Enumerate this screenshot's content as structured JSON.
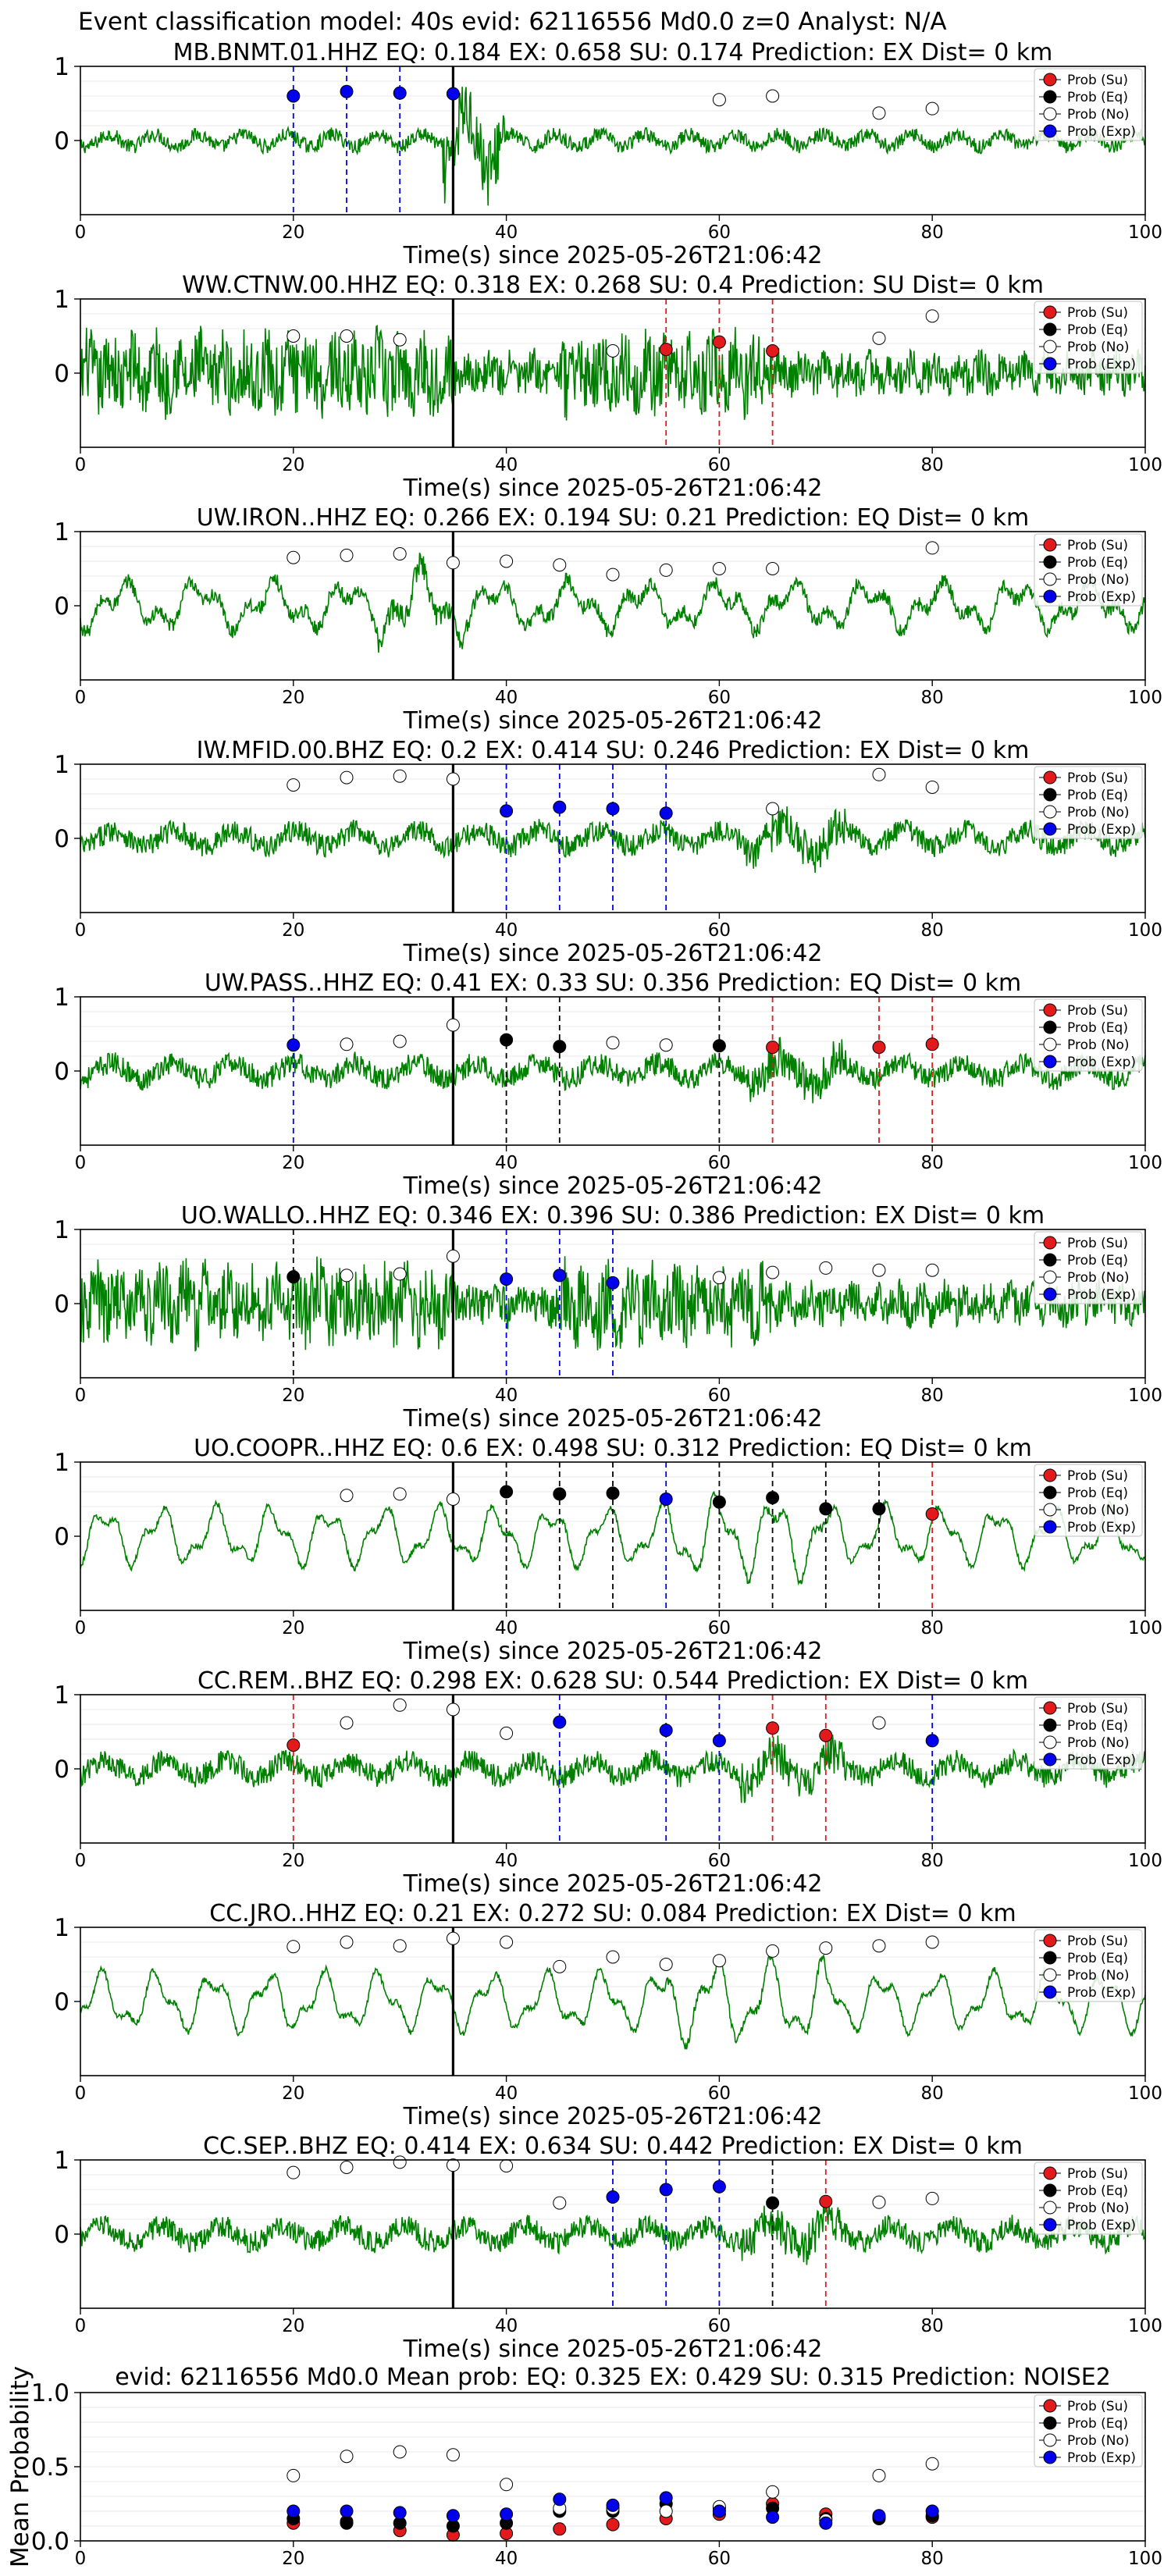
{
  "figure": {
    "suptitle": "Event classification model: 40s evid: 62116556 Md0.0 z=0 Analyst: N/A",
    "colors": {
      "trace": "#008000",
      "su": "#e31a1c",
      "eq": "#000000",
      "no": "#ffffff",
      "exp": "#0000ee",
      "pick": "#000000"
    },
    "legend": [
      "Prob (Su)",
      "Prob (Eq)",
      "Prob (No)",
      "Prob (Exp)"
    ],
    "xticks": [
      "0",
      "20",
      "40",
      "60",
      "80",
      "100"
    ],
    "yticks_wave": [
      "1",
      "0"
    ],
    "xlabel": "Time(s) since 2025-05-26T21:06:42"
  },
  "chart_data": [
    {
      "type": "line",
      "title": "MB.BNMT.01.HHZ   EQ: 0.184  EX: 0.658  SU: 0.174   Prediction: EX    Dist= 0 km",
      "xlim": [
        0,
        100
      ],
      "ylim": [
        -1,
        1
      ],
      "pick_time": 35,
      "waveform": "noisy_burst",
      "points": [
        {
          "x": 20,
          "y": 0.6,
          "cls": "exp",
          "line": true
        },
        {
          "x": 25,
          "y": 0.66,
          "cls": "exp",
          "line": true
        },
        {
          "x": 30,
          "y": 0.64,
          "cls": "exp",
          "line": true
        },
        {
          "x": 35,
          "y": 0.63,
          "cls": "exp",
          "line": true
        },
        {
          "x": 60,
          "y": 0.55,
          "cls": "no"
        },
        {
          "x": 65,
          "y": 0.6,
          "cls": "no"
        },
        {
          "x": 75,
          "y": 0.37,
          "cls": "no"
        },
        {
          "x": 80,
          "y": 0.43,
          "cls": "no"
        }
      ]
    },
    {
      "type": "line",
      "title": "WW.CTNW.00.HHZ   EQ: 0.318  EX: 0.268  SU: 0.4   Prediction: SU    Dist= 0 km",
      "xlim": [
        0,
        100
      ],
      "ylim": [
        -1,
        1
      ],
      "pick_time": 35,
      "waveform": "noisy_dense",
      "points": [
        {
          "x": 20,
          "y": 0.5,
          "cls": "no"
        },
        {
          "x": 25,
          "y": 0.5,
          "cls": "no"
        },
        {
          "x": 30,
          "y": 0.45,
          "cls": "no"
        },
        {
          "x": 50,
          "y": 0.3,
          "cls": "no"
        },
        {
          "x": 55,
          "y": 0.32,
          "cls": "su",
          "line": true
        },
        {
          "x": 60,
          "y": 0.42,
          "cls": "su",
          "line": true
        },
        {
          "x": 65,
          "y": 0.3,
          "cls": "su",
          "line": true
        },
        {
          "x": 75,
          "y": 0.47,
          "cls": "no"
        },
        {
          "x": 80,
          "y": 0.77,
          "cls": "no"
        }
      ]
    },
    {
      "type": "line",
      "title": "UW.IRON..HHZ   EQ: 0.266  EX: 0.194  SU: 0.21   Prediction: EQ    Dist= 0 km",
      "xlim": [
        0,
        100
      ],
      "ylim": [
        -1,
        1
      ],
      "pick_time": 35,
      "waveform": "slow",
      "points": [
        {
          "x": 20,
          "y": 0.65,
          "cls": "no"
        },
        {
          "x": 25,
          "y": 0.68,
          "cls": "no"
        },
        {
          "x": 30,
          "y": 0.7,
          "cls": "no"
        },
        {
          "x": 35,
          "y": 0.58,
          "cls": "no"
        },
        {
          "x": 40,
          "y": 0.6,
          "cls": "no"
        },
        {
          "x": 45,
          "y": 0.55,
          "cls": "no"
        },
        {
          "x": 50,
          "y": 0.42,
          "cls": "no"
        },
        {
          "x": 55,
          "y": 0.48,
          "cls": "no"
        },
        {
          "x": 60,
          "y": 0.5,
          "cls": "no"
        },
        {
          "x": 65,
          "y": 0.5,
          "cls": "no"
        },
        {
          "x": 80,
          "y": 0.78,
          "cls": "no"
        }
      ]
    },
    {
      "type": "line",
      "title": "IW.MFID.00.BHZ   EQ: 0.2  EX: 0.414  SU: 0.246   Prediction: EX    Dist= 0 km",
      "xlim": [
        0,
        100
      ],
      "ylim": [
        -1,
        1
      ],
      "pick_time": 35,
      "waveform": "noisy",
      "points": [
        {
          "x": 20,
          "y": 0.72,
          "cls": "no"
        },
        {
          "x": 25,
          "y": 0.82,
          "cls": "no"
        },
        {
          "x": 30,
          "y": 0.84,
          "cls": "no"
        },
        {
          "x": 35,
          "y": 0.8,
          "cls": "no"
        },
        {
          "x": 40,
          "y": 0.37,
          "cls": "exp",
          "line": true
        },
        {
          "x": 45,
          "y": 0.42,
          "cls": "exp",
          "line": true
        },
        {
          "x": 50,
          "y": 0.4,
          "cls": "exp",
          "line": true
        },
        {
          "x": 55,
          "y": 0.34,
          "cls": "exp",
          "line": true
        },
        {
          "x": 65,
          "y": 0.4,
          "cls": "no"
        },
        {
          "x": 75,
          "y": 0.86,
          "cls": "no"
        },
        {
          "x": 80,
          "y": 0.69,
          "cls": "no"
        }
      ]
    },
    {
      "type": "line",
      "title": "UW.PASS..HHZ   EQ: 0.41  EX: 0.33  SU: 0.356   Prediction: EQ    Dist= 0 km",
      "xlim": [
        0,
        100
      ],
      "ylim": [
        -1,
        1
      ],
      "pick_time": 35,
      "waveform": "noisy",
      "points": [
        {
          "x": 20,
          "y": 0.35,
          "cls": "exp",
          "line": true
        },
        {
          "x": 25,
          "y": 0.36,
          "cls": "no"
        },
        {
          "x": 30,
          "y": 0.4,
          "cls": "no"
        },
        {
          "x": 35,
          "y": 0.62,
          "cls": "no"
        },
        {
          "x": 40,
          "y": 0.42,
          "cls": "eq",
          "line": true
        },
        {
          "x": 45,
          "y": 0.33,
          "cls": "eq",
          "line": true
        },
        {
          "x": 50,
          "y": 0.38,
          "cls": "no"
        },
        {
          "x": 55,
          "y": 0.35,
          "cls": "no"
        },
        {
          "x": 60,
          "y": 0.34,
          "cls": "eq",
          "line": true
        },
        {
          "x": 65,
          "y": 0.32,
          "cls": "su",
          "line": true
        },
        {
          "x": 75,
          "y": 0.32,
          "cls": "su",
          "line": true
        },
        {
          "x": 80,
          "y": 0.36,
          "cls": "su",
          "line": true
        }
      ]
    },
    {
      "type": "line",
      "title": "UO.WALLO..HHZ   EQ: 0.346  EX: 0.396  SU: 0.386   Prediction: EX    Dist= 0 km",
      "xlim": [
        0,
        100
      ],
      "ylim": [
        -1,
        1
      ],
      "pick_time": 35,
      "waveform": "noisy_dense",
      "points": [
        {
          "x": 20,
          "y": 0.36,
          "cls": "eq",
          "line": true
        },
        {
          "x": 25,
          "y": 0.38,
          "cls": "no"
        },
        {
          "x": 30,
          "y": 0.4,
          "cls": "no"
        },
        {
          "x": 35,
          "y": 0.64,
          "cls": "no"
        },
        {
          "x": 40,
          "y": 0.33,
          "cls": "exp",
          "line": true
        },
        {
          "x": 45,
          "y": 0.38,
          "cls": "exp",
          "line": true
        },
        {
          "x": 50,
          "y": 0.28,
          "cls": "exp",
          "line": true
        },
        {
          "x": 60,
          "y": 0.35,
          "cls": "no"
        },
        {
          "x": 65,
          "y": 0.42,
          "cls": "no"
        },
        {
          "x": 70,
          "y": 0.48,
          "cls": "no"
        },
        {
          "x": 75,
          "y": 0.45,
          "cls": "no"
        },
        {
          "x": 80,
          "y": 0.45,
          "cls": "no"
        }
      ]
    },
    {
      "type": "line",
      "title": "UO.COOPR..HHZ   EQ: 0.6  EX: 0.498  SU: 0.312   Prediction: EQ    Dist= 0 km",
      "xlim": [
        0,
        100
      ],
      "ylim": [
        -1,
        1
      ],
      "pick_time": 35,
      "waveform": "wavy",
      "points": [
        {
          "x": 25,
          "y": 0.55,
          "cls": "no"
        },
        {
          "x": 30,
          "y": 0.57,
          "cls": "no"
        },
        {
          "x": 35,
          "y": 0.5,
          "cls": "no"
        },
        {
          "x": 40,
          "y": 0.6,
          "cls": "eq",
          "line": true
        },
        {
          "x": 45,
          "y": 0.57,
          "cls": "eq",
          "line": true
        },
        {
          "x": 50,
          "y": 0.58,
          "cls": "eq",
          "line": true
        },
        {
          "x": 55,
          "y": 0.5,
          "cls": "exp",
          "line": true
        },
        {
          "x": 60,
          "y": 0.46,
          "cls": "eq",
          "line": true
        },
        {
          "x": 65,
          "y": 0.52,
          "cls": "eq",
          "line": true
        },
        {
          "x": 70,
          "y": 0.37,
          "cls": "eq",
          "line": true
        },
        {
          "x": 75,
          "y": 0.37,
          "cls": "eq",
          "line": true
        },
        {
          "x": 80,
          "y": 0.3,
          "cls": "su",
          "line": true
        }
      ]
    },
    {
      "type": "line",
      "title": "CC.REM..BHZ   EQ: 0.298  EX: 0.628  SU: 0.544   Prediction: EX    Dist= 0 km",
      "xlim": [
        0,
        100
      ],
      "ylim": [
        -1,
        1
      ],
      "pick_time": 35,
      "waveform": "noisy",
      "points": [
        {
          "x": 20,
          "y": 0.32,
          "cls": "su",
          "line": true
        },
        {
          "x": 25,
          "y": 0.62,
          "cls": "no"
        },
        {
          "x": 30,
          "y": 0.86,
          "cls": "no"
        },
        {
          "x": 35,
          "y": 0.8,
          "cls": "no"
        },
        {
          "x": 40,
          "y": 0.48,
          "cls": "no"
        },
        {
          "x": 45,
          "y": 0.63,
          "cls": "exp",
          "line": true
        },
        {
          "x": 55,
          "y": 0.52,
          "cls": "exp",
          "line": true
        },
        {
          "x": 60,
          "y": 0.38,
          "cls": "exp",
          "line": true
        },
        {
          "x": 65,
          "y": 0.55,
          "cls": "su",
          "line": true
        },
        {
          "x": 70,
          "y": 0.45,
          "cls": "su",
          "line": true
        },
        {
          "x": 75,
          "y": 0.62,
          "cls": "no"
        },
        {
          "x": 80,
          "y": 0.38,
          "cls": "exp",
          "line": true
        }
      ]
    },
    {
      "type": "line",
      "title": "CC.JRO..HHZ   EQ: 0.21  EX: 0.272  SU: 0.084   Prediction: EX    Dist= 0 km",
      "xlim": [
        0,
        100
      ],
      "ylim": [
        -1,
        1
      ],
      "pick_time": 35,
      "waveform": "wavy",
      "points": [
        {
          "x": 20,
          "y": 0.74,
          "cls": "no"
        },
        {
          "x": 25,
          "y": 0.8,
          "cls": "no"
        },
        {
          "x": 30,
          "y": 0.75,
          "cls": "no"
        },
        {
          "x": 35,
          "y": 0.85,
          "cls": "no"
        },
        {
          "x": 40,
          "y": 0.8,
          "cls": "no"
        },
        {
          "x": 45,
          "y": 0.47,
          "cls": "no"
        },
        {
          "x": 50,
          "y": 0.6,
          "cls": "no"
        },
        {
          "x": 55,
          "y": 0.5,
          "cls": "no"
        },
        {
          "x": 60,
          "y": 0.55,
          "cls": "no"
        },
        {
          "x": 65,
          "y": 0.68,
          "cls": "no"
        },
        {
          "x": 70,
          "y": 0.72,
          "cls": "no"
        },
        {
          "x": 75,
          "y": 0.75,
          "cls": "no"
        },
        {
          "x": 80,
          "y": 0.8,
          "cls": "no"
        }
      ]
    },
    {
      "type": "line",
      "title": "CC.SEP..BHZ   EQ: 0.414  EX: 0.634  SU: 0.442   Prediction: EX    Dist= 0 km",
      "xlim": [
        0,
        100
      ],
      "ylim": [
        -1,
        1
      ],
      "pick_time": 35,
      "waveform": "noisy",
      "points": [
        {
          "x": 20,
          "y": 0.83,
          "cls": "no"
        },
        {
          "x": 25,
          "y": 0.9,
          "cls": "no"
        },
        {
          "x": 30,
          "y": 0.97,
          "cls": "no"
        },
        {
          "x": 35,
          "y": 0.93,
          "cls": "no"
        },
        {
          "x": 40,
          "y": 0.92,
          "cls": "no"
        },
        {
          "x": 45,
          "y": 0.42,
          "cls": "no"
        },
        {
          "x": 50,
          "y": 0.5,
          "cls": "exp",
          "line": true
        },
        {
          "x": 55,
          "y": 0.6,
          "cls": "exp",
          "line": true
        },
        {
          "x": 60,
          "y": 0.64,
          "cls": "exp",
          "line": true
        },
        {
          "x": 65,
          "y": 0.42,
          "cls": "eq",
          "line": true
        },
        {
          "x": 70,
          "y": 0.44,
          "cls": "su",
          "line": true
        },
        {
          "x": 75,
          "y": 0.43,
          "cls": "no"
        },
        {
          "x": 80,
          "y": 0.48,
          "cls": "no"
        }
      ]
    },
    {
      "type": "scatter",
      "title": "evid: 62116556  Md0.0   Mean prob:   EQ: 0.325  EX: 0.429  SU: 0.315   Prediction: NOISE2",
      "ylabel": "Mean Probability",
      "xlim": [
        0,
        100
      ],
      "ylim": [
        0,
        1
      ],
      "yticks": [
        "0.0",
        "0.5",
        "1.0"
      ],
      "xticks": [
        "0",
        "20",
        "40",
        "60",
        "80",
        "100"
      ],
      "x": [
        20,
        25,
        30,
        35,
        40,
        45,
        50,
        55,
        60,
        65,
        70,
        75,
        80
      ],
      "series": [
        {
          "name": "Prob (Su)",
          "cls": "su",
          "values": [
            0.12,
            0.13,
            0.07,
            0.04,
            0.05,
            0.08,
            0.11,
            0.15,
            0.18,
            0.25,
            0.18,
            0.16,
            0.16
          ]
        },
        {
          "name": "Prob (Eq)",
          "cls": "eq",
          "values": [
            0.15,
            0.12,
            0.12,
            0.1,
            0.12,
            0.2,
            0.2,
            0.25,
            0.22,
            0.22,
            0.15,
            0.15,
            0.17
          ]
        },
        {
          "name": "Prob (No)",
          "cls": "no",
          "values": [
            0.44,
            0.57,
            0.6,
            0.58,
            0.38,
            0.22,
            0.22,
            0.2,
            0.23,
            0.33,
            0.14,
            0.44,
            0.52
          ]
        },
        {
          "name": "Prob (Exp)",
          "cls": "exp",
          "values": [
            0.2,
            0.2,
            0.19,
            0.17,
            0.18,
            0.28,
            0.24,
            0.29,
            0.2,
            0.16,
            0.12,
            0.17,
            0.2
          ]
        }
      ]
    }
  ]
}
